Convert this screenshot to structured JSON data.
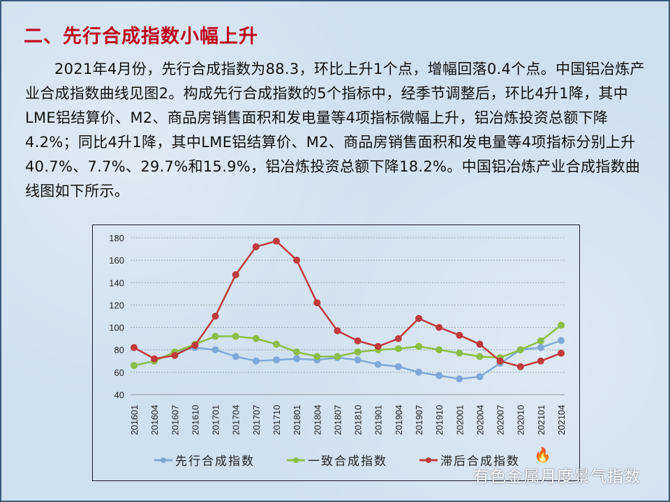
{
  "heading": "二、先行合成指数小幅上升",
  "paragraph": "2021年4月份，先行合成指数为88.3，环比上升1个点，增幅回落0.4个点。中国铝冶炼产业合成指数曲线见图2。构成先行合成指数的5个指标中，经季节调整后，环比4升1降，其中LME铝结算价、M2、商品房销售面积和发电量等4项指标微幅上升，铝冶炼投资总额下降4.2%；同比4升1降，其中LME铝结算价、M2、商品房销售面积和发电量等4项指标分别上升40.7%、7.7%、29.7%和15.9%，铝冶炼投资总额下降18.2%。中国铝冶炼产业合成指数曲线图如下所示。",
  "watermark": "有色金属月度景气指数",
  "chart_data": {
    "type": "line",
    "title": "",
    "categories": [
      "201601",
      "201604",
      "201607",
      "201610",
      "201701",
      "201704",
      "201707",
      "201710",
      "201801",
      "201804",
      "201807",
      "201810",
      "201901",
      "201904",
      "201907",
      "201910",
      "202001",
      "202004",
      "202007",
      "202010",
      "202101",
      "202104"
    ],
    "yticks": [
      "40",
      "60",
      "80",
      "100",
      "120",
      "140",
      "160",
      "180"
    ],
    "ylim": [
      40,
      180
    ],
    "grid": true,
    "legend": "bottom",
    "series": [
      {
        "name": "先行合成指数",
        "color": "#7fa8d8",
        "values": [
          66,
          70,
          78,
          82,
          80,
          74,
          70,
          71,
          72,
          71,
          73,
          71,
          67,
          65,
          60,
          57,
          54,
          56,
          68,
          80,
          82,
          88.3
        ]
      },
      {
        "name": "一致合成指数",
        "color": "#8cbd45",
        "values": [
          66,
          70,
          78,
          85,
          92,
          92,
          90,
          85,
          78,
          74,
          74,
          78,
          80,
          81,
          83,
          80,
          77,
          74,
          73,
          80,
          88,
          102
        ]
      },
      {
        "name": "滞后合成指数",
        "color": "#c0393b",
        "values": [
          82,
          72,
          75,
          84,
          110,
          147,
          172,
          177,
          160,
          122,
          97,
          88,
          83,
          90,
          108,
          100,
          93,
          85,
          70,
          65,
          70,
          77
        ]
      }
    ]
  }
}
